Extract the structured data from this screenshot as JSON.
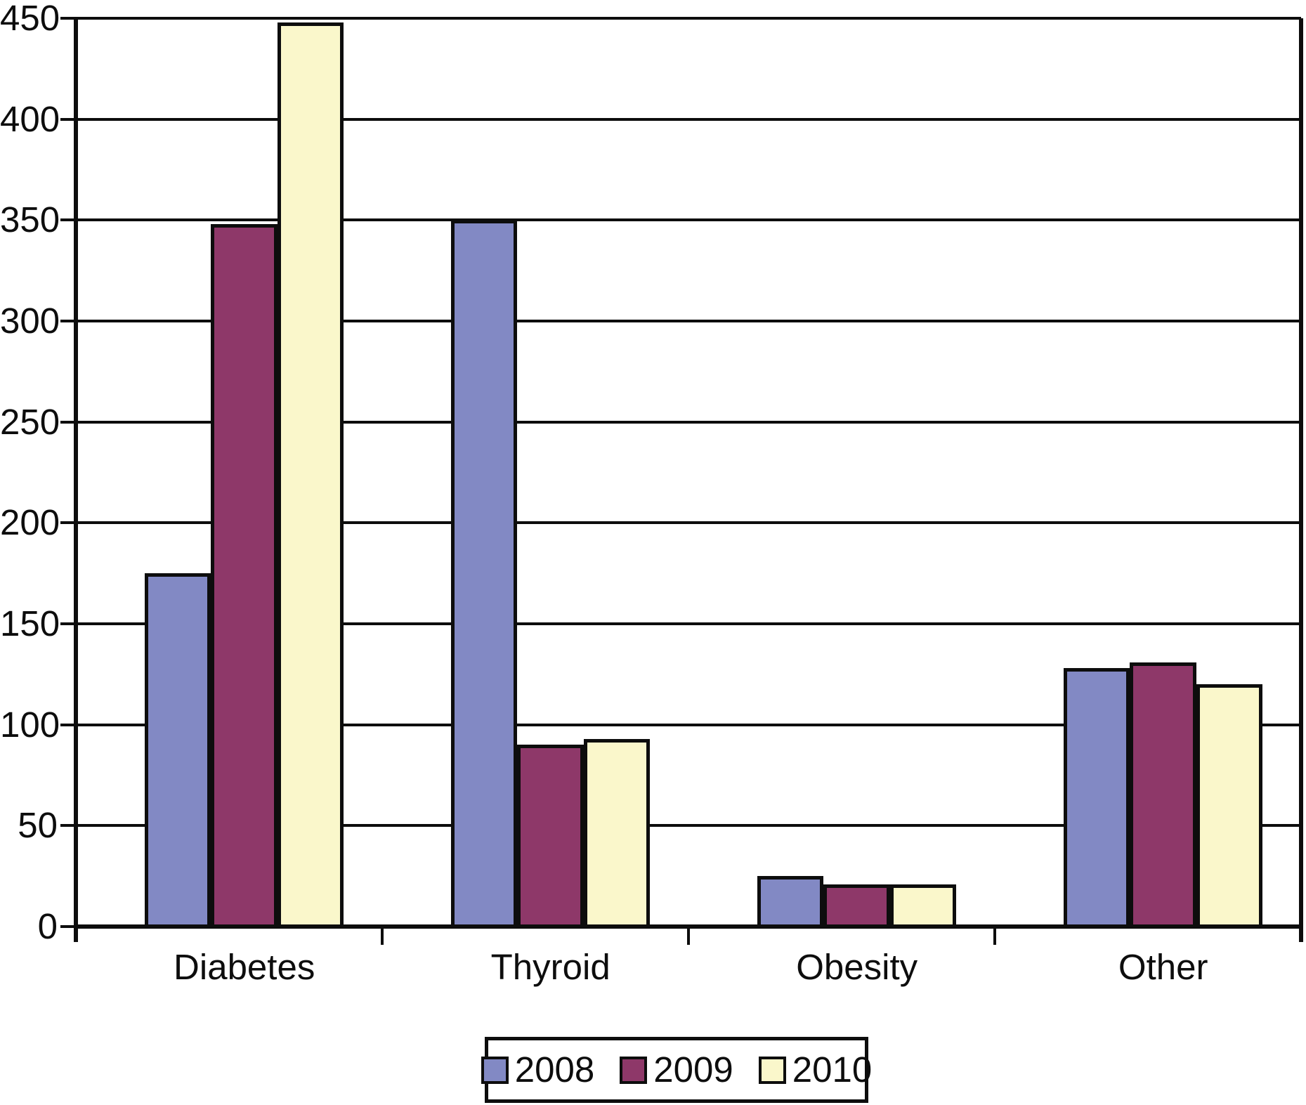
{
  "chart_data": {
    "type": "bar",
    "categories": [
      "Diabetes",
      "Thyroid",
      "Obesity",
      "Other"
    ],
    "series": [
      {
        "name": "2008",
        "color": "#8289C4",
        "values": [
          175,
          350,
          25,
          128
        ]
      },
      {
        "name": "2009",
        "color": "#8E3869",
        "values": [
          348,
          90,
          21,
          131
        ]
      },
      {
        "name": "2010",
        "color": "#FAF7CB",
        "values": [
          448,
          93,
          21,
          120
        ]
      }
    ],
    "title": "",
    "xlabel": "",
    "ylabel": "",
    "ylim": [
      0,
      450
    ],
    "ytick_step": 50,
    "ytick_labels": [
      "0",
      "50",
      "100",
      "150",
      "200",
      "250",
      "300",
      "350",
      "400",
      "450"
    ],
    "grid": "horizontal",
    "gridline_color": "#0d0d0d",
    "axis_color": "#0d0d0d",
    "plot_background": "#ffffff",
    "legend_position": "bottom",
    "legend_labels": [
      "2008",
      "2009",
      "2010"
    ]
  }
}
